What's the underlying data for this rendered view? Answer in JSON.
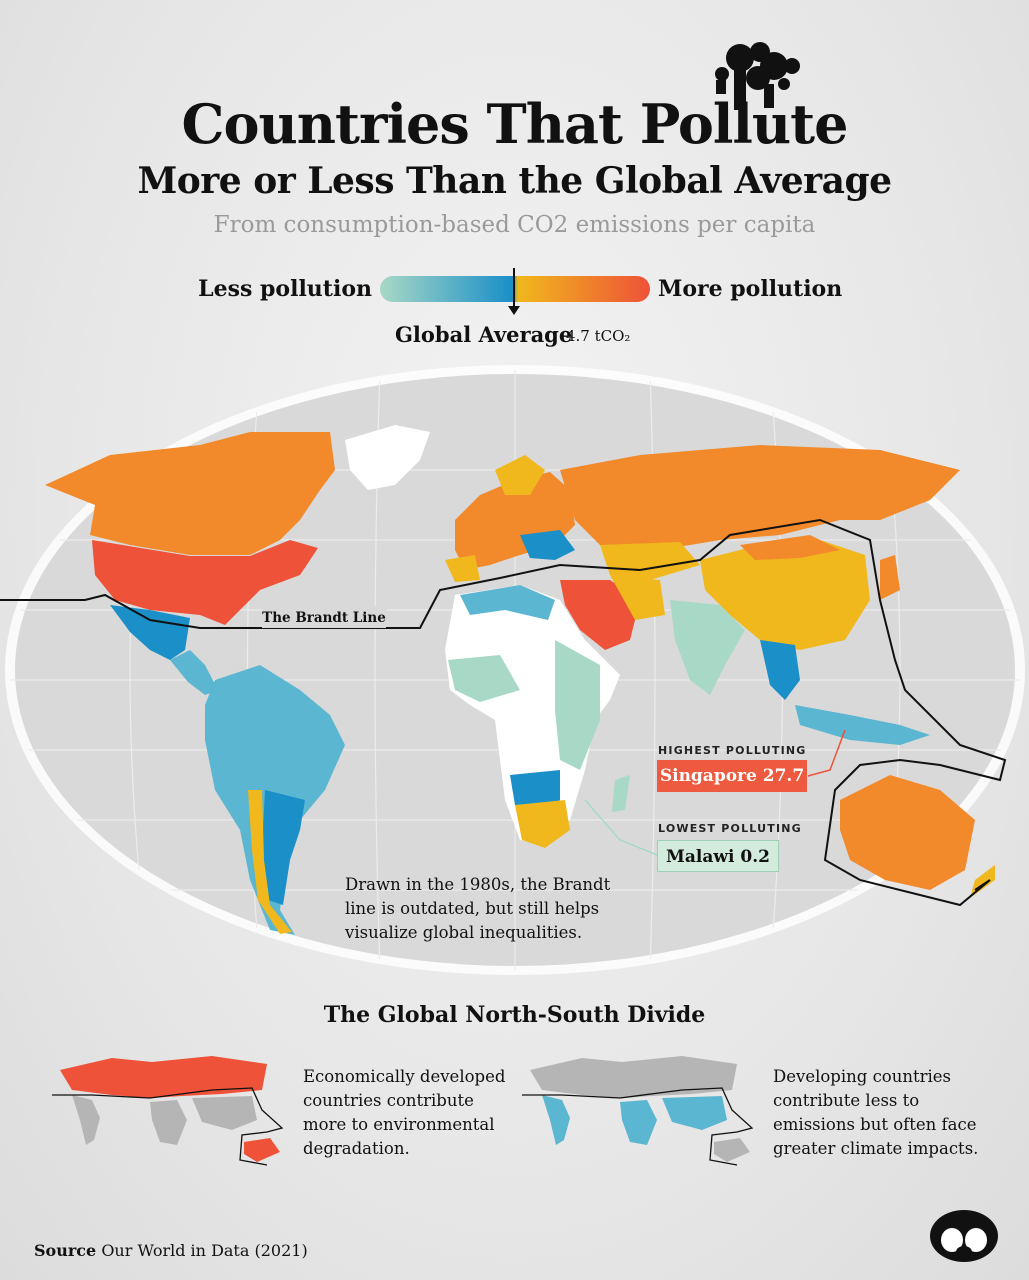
{
  "title": {
    "line1": "Countries That Pollute",
    "line2": "More or Less Than the Global Average",
    "subtitle": "From consumption-based CO2 emissions per capita"
  },
  "legend": {
    "less_label": "Less pollution",
    "more_label": "More pollution",
    "average_label": "Global Average",
    "average_value": "4.7 tCO₂"
  },
  "colors": {
    "high": "#ee5238",
    "med_high": "#f2892b",
    "above_avg": "#f0b81c",
    "below_avg_dark": "#1a8fc8",
    "below_avg": "#5bb6d2",
    "low": "#a8d8c6",
    "no_data": "#ffffff"
  },
  "map": {
    "brandt_line_label": "The Brandt Line",
    "highest": {
      "heading": "HIGHEST POLLUTING",
      "label": "Singapore 27.7"
    },
    "lowest": {
      "heading": "LOWEST POLLUTING",
      "label": "Malawi 0.2"
    },
    "note": "Drawn in the 1980s, the Brandt line is outdated, but still helps visualize global inequalities."
  },
  "divide": {
    "title": "The Global North-South Divide",
    "north_text": "Economically developed countries contribute more to environmental degradation.",
    "south_text": "Developing countries contribute less to emissions but often face greater climate impacts."
  },
  "source": {
    "label": "Source",
    "text": "Our World in Data (2021)"
  }
}
